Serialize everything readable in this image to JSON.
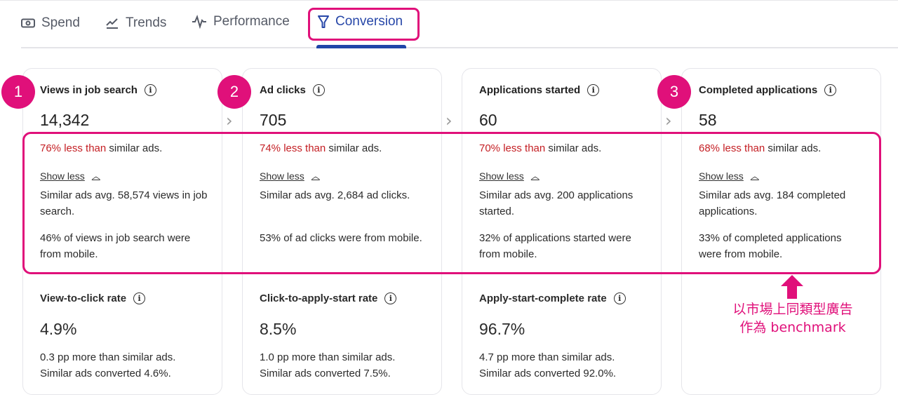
{
  "tabs": [
    {
      "label": "Spend",
      "icon": "money-icon"
    },
    {
      "label": "Trends",
      "icon": "trend-line-icon"
    },
    {
      "label": "Performance",
      "icon": "pulse-icon"
    },
    {
      "label": "Conversion",
      "icon": "funnel-icon",
      "active": true
    }
  ],
  "cards": [
    {
      "title": "Views in job search",
      "value": "14,342",
      "cmp_red": "76% less than",
      "cmp_rest": " similar ads.",
      "show_less": "Show less",
      "p1": "Similar ads avg. 58,574 views in job search.",
      "p2": "46% of views in job search were from mobile.",
      "rate_title": "View-to-click rate",
      "rate_value": "4.9%",
      "rate_desc1": "0.3 pp more than similar ads.",
      "rate_desc2": "Similar ads converted 4.6%."
    },
    {
      "title": "Ad clicks",
      "value": "705",
      "cmp_red": "74% less than",
      "cmp_rest": " similar ads.",
      "show_less": "Show less",
      "p1": "Similar ads avg. 2,684 ad clicks.",
      "p2": "53% of ad clicks were from mobile.",
      "rate_title": "Click-to-apply-start rate",
      "rate_value": "8.5%",
      "rate_desc1": "1.0 pp more than similar ads.",
      "rate_desc2": "Similar ads converted 7.5%."
    },
    {
      "title": "Applications started",
      "value": "60",
      "cmp_red": "70% less than",
      "cmp_rest": " similar ads.",
      "show_less": "Show less",
      "p1": "Similar ads avg. 200 applications started.",
      "p2": "32% of applications started were from mobile.",
      "rate_title": "Apply-start-complete rate",
      "rate_value": "96.7%",
      "rate_desc1": "4.7 pp more than similar ads.",
      "rate_desc2": "Similar ads converted 92.0%."
    },
    {
      "title": "Completed applications",
      "value": "58",
      "cmp_red": "68% less than",
      "cmp_rest": " similar ads.",
      "show_less": "Show less",
      "p1": "Similar ads avg. 184 completed applications.",
      "p2": "33% of completed applications were from mobile."
    }
  ],
  "badges": [
    "1",
    "2",
    "3"
  ],
  "annotation": {
    "line1": "以市場上同類型廣告",
    "line2": "作為 benchmark"
  },
  "colors": {
    "accent": "#e0107a",
    "active_tab": "#2747a8",
    "negative": "#c41e23"
  }
}
